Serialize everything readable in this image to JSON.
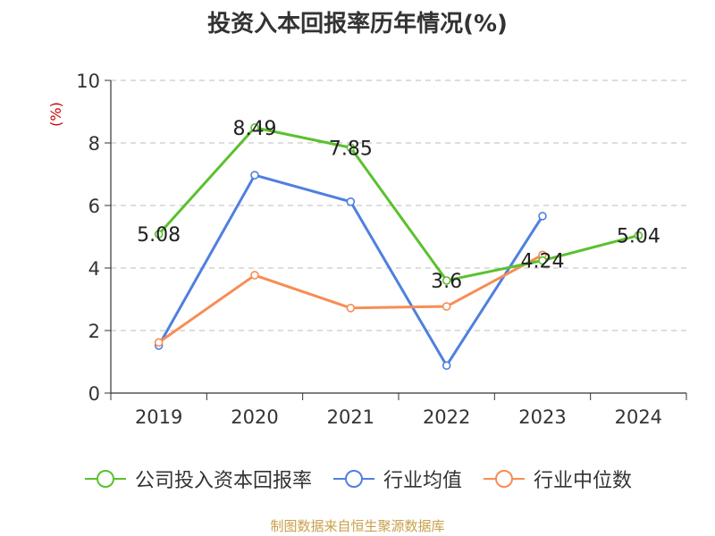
{
  "chart_data": {
    "type": "line",
    "title": "投资入本回报率历年情况(%)",
    "ylabel": "(%)",
    "categories": [
      "2019",
      "2020",
      "2021",
      "2022",
      "2023",
      "2024"
    ],
    "ylim": [
      0,
      10
    ],
    "yticks": [
      "0",
      "2",
      "4",
      "6",
      "8",
      "10"
    ],
    "grid": true,
    "legend_position": "bottom",
    "series": [
      {
        "name": "公司投入资本回报率",
        "color": "#5ac12e",
        "values": [
          5.08,
          8.49,
          7.85,
          3.6,
          4.24,
          5.04
        ],
        "labels": [
          "5.08",
          "8.49",
          "7.85",
          "3.6",
          "4.24",
          "5.04"
        ]
      },
      {
        "name": "行业均值",
        "color": "#4f7fe0",
        "values": [
          1.52,
          6.97,
          6.12,
          0.88,
          5.66,
          null
        ]
      },
      {
        "name": "行业中位数",
        "color": "#f78d55",
        "values": [
          1.62,
          3.77,
          2.72,
          2.77,
          4.42,
          null
        ]
      }
    ]
  },
  "source_note": "制图数据来自恒生聚源数据库"
}
